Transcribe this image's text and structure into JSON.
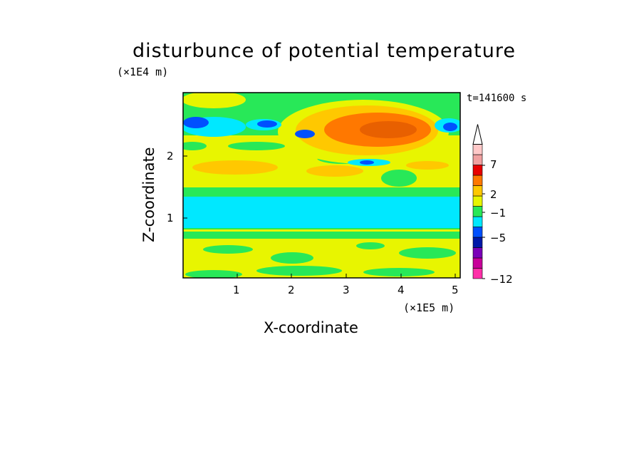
{
  "chart_data": {
    "type": "heatmap",
    "title": "disturbunce of potential temperature",
    "xlabel": "X-coordinate",
    "ylabel": "Z-coordinate",
    "x_unit": "(×1E5 m)",
    "y_unit": "(×1E4 m)",
    "time_label": "t=141600 s",
    "xlim": [
      0,
      5.1
    ],
    "ylim": [
      0,
      2.95
    ],
    "x_ticks": [
      "1",
      "2",
      "3",
      "4",
      "5"
    ],
    "y_ticks": [
      "1",
      "2"
    ],
    "colorbar": {
      "labels": [
        "7",
        "2",
        "−1",
        "−5",
        "−12"
      ],
      "colors": [
        "#ff2fa8",
        "#c8009a",
        "#7a00b8",
        "#0018a8",
        "#0050ff",
        "#00e8ff",
        "#28e858",
        "#e8f500",
        "#ffc800",
        "#ff7800",
        "#e80000",
        "#f0a0a0",
        "#ffc8c8"
      ],
      "extend_top": true
    },
    "regions": [
      {
        "zone": "0.00–0.15",
        "level": "yellow / green mix"
      },
      {
        "zone": "0.15–0.85",
        "level": "yellow"
      },
      {
        "zone": "0.85–1.40",
        "level": "cyan (≈ −1)"
      },
      {
        "zone": "1.40–2.10",
        "level": "yellow / light orange"
      },
      {
        "zone": "2.10–2.80, x 2.0–4.6",
        "level": "orange (≈ 2–7)"
      },
      {
        "zone": "2.40–2.60, x 0.0–2.0",
        "level": "cyan / blue (≈ −1 to −5)"
      }
    ]
  }
}
